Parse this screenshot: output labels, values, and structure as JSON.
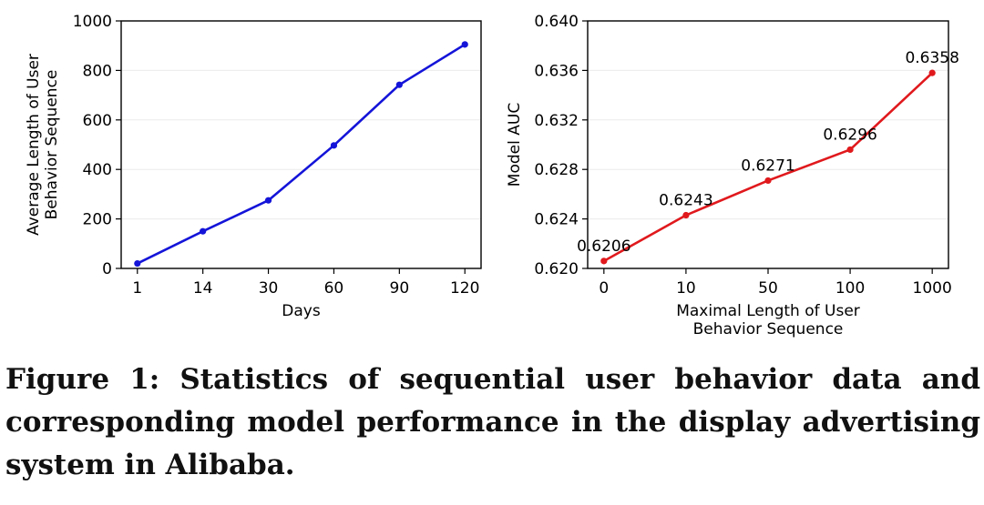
{
  "chart_data": [
    {
      "type": "line",
      "categories": [
        "1",
        "14",
        "30",
        "60",
        "90",
        "120"
      ],
      "series": [
        {
          "values": [
            20,
            150,
            275,
            497,
            742,
            905
          ]
        }
      ],
      "xlabel": "Days",
      "ylabel_lines": [
        "Average Length of User",
        "Behavior Sequence"
      ],
      "ylim": [
        0,
        1000
      ],
      "yticks": [
        "0",
        "200",
        "400",
        "600",
        "800",
        "1000"
      ],
      "grid": "horizontal",
      "color": "#1414d9"
    },
    {
      "type": "line",
      "categories": [
        "0",
        "10",
        "50",
        "100",
        "1000"
      ],
      "series": [
        {
          "values": [
            0.6206,
            0.6243,
            0.6271,
            0.6296,
            0.6358
          ]
        }
      ],
      "data_labels": [
        "0.6206",
        "0.6243",
        "0.6271",
        "0.6296",
        "0.6358"
      ],
      "xlabel_lines": [
        "Maximal Length of User",
        "Behavior Sequence"
      ],
      "ylabel": "Model AUC",
      "ylim": [
        0.62,
        0.64
      ],
      "yticks": [
        "0.620",
        "0.624",
        "0.628",
        "0.632",
        "0.636",
        "0.640"
      ],
      "grid": "horizontal",
      "color": "#e0191d"
    }
  ],
  "caption": "Figure 1: Statistics of sequential user behavior data and corresponding model performance in the display advertising system in Alibaba."
}
